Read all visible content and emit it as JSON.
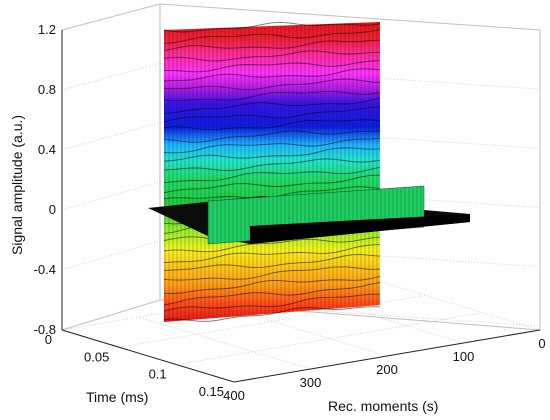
{
  "chart_data": {
    "type": "surface-3d",
    "xlabel": "Time (ms)",
    "ylabel": "Rec. moments (s)",
    "zlabel": "Signal amplitude (a.u.)",
    "x_ticks": [
      "0",
      "0.05",
      "0.1",
      "0.15"
    ],
    "y_ticks": [
      "400",
      "300",
      "200",
      "100",
      "0"
    ],
    "z_ticks": [
      "1.2",
      "0.8",
      "0.4",
      "0",
      "-0.4",
      "-0.8"
    ],
    "xlim": [
      0,
      0.15
    ],
    "ylim": [
      0,
      400
    ],
    "zlim": [
      -0.8,
      1.2
    ],
    "time_slice_ms": 0.1,
    "surface_amplitude_range": [
      -0.8,
      1.2
    ],
    "horizontal_slice": {
      "amplitude": 0,
      "x_range": [
        0,
        0.15
      ],
      "y_range": [
        0,
        400
      ]
    },
    "colormap": [
      "#e6161a",
      "#ff2b8e",
      "#ff33ff",
      "#3a14e6",
      "#0a1ee0",
      "#1fb6ff",
      "#22dd6a",
      "#22cc44",
      "#9ef02a",
      "#f7f21e",
      "#ff9a1a",
      "#ff4a1a",
      "#e6161a"
    ],
    "grid": true
  }
}
